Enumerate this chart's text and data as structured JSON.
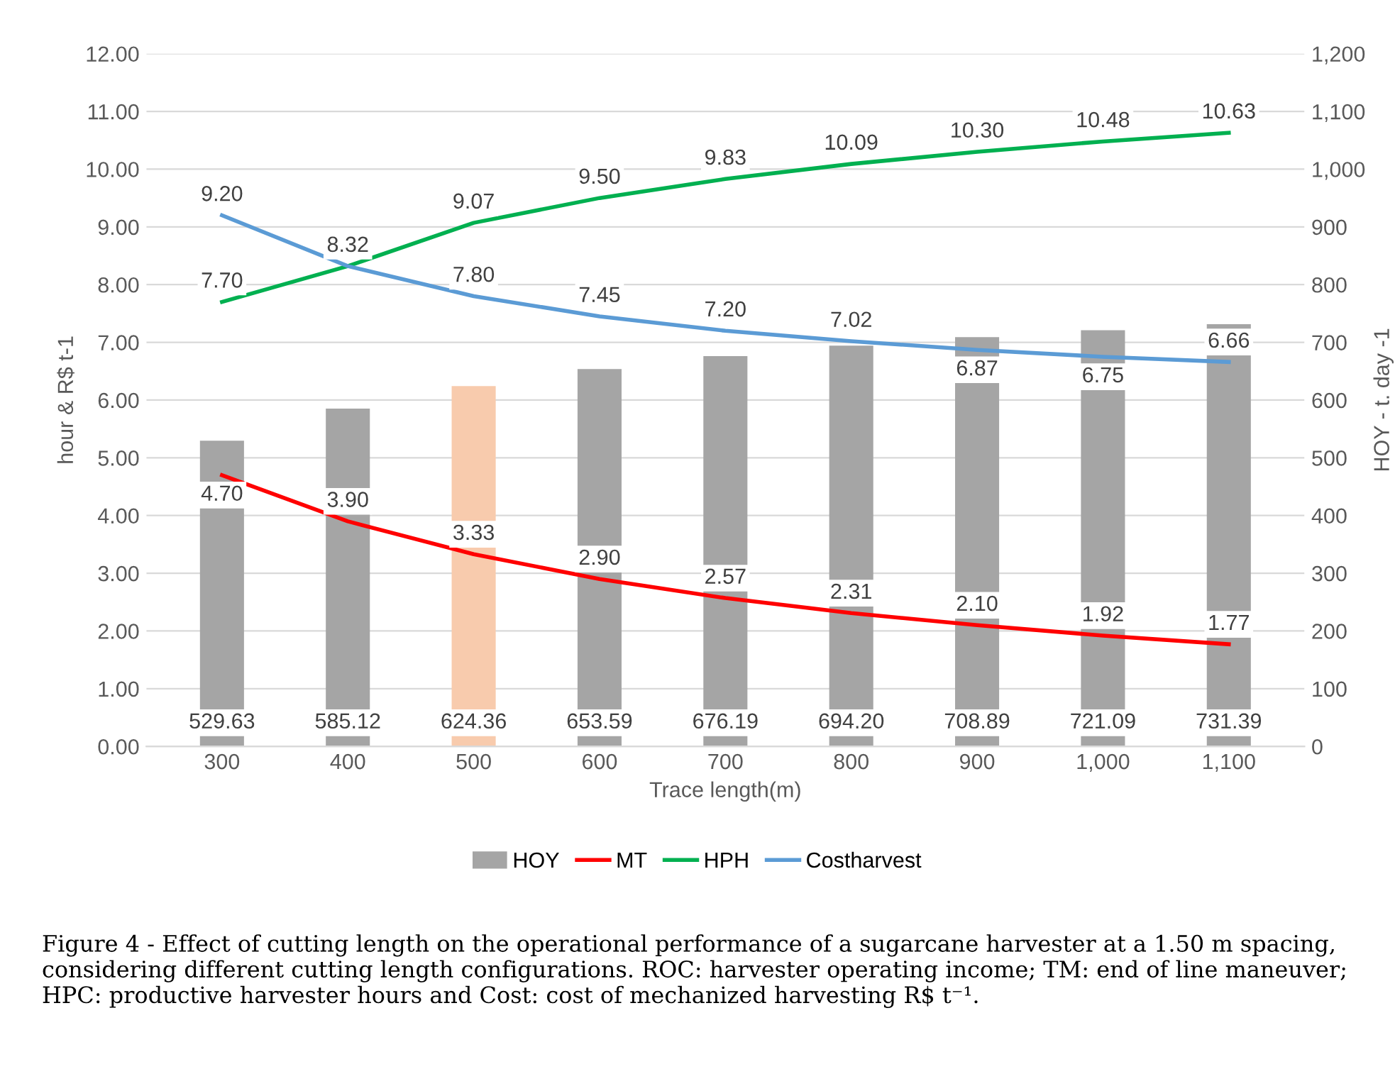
{
  "chart_data": {
    "type": "bar",
    "xlabel": "Trace length(m)",
    "ylabel": "hour & R$ t-1",
    "y2label": "HOY - t. day -1",
    "categories": [
      "300",
      "400",
      "500",
      "600",
      "700",
      "800",
      "900",
      "1,000",
      "1,100"
    ],
    "series": [
      {
        "name": "HOY",
        "axis": "y2",
        "color": "#a5a5a5",
        "colors": [
          "#a5a5a5",
          "#a5a5a5",
          "#f8cbad",
          "#a5a5a5",
          "#a5a5a5",
          "#a5a5a5",
          "#a5a5a5",
          "#a5a5a5",
          "#a5a5a5"
        ],
        "values": [
          529.63,
          585.12,
          624.36,
          653.59,
          676.19,
          694.2,
          708.89,
          721.09,
          731.39
        ],
        "value_labels": [
          "529.63",
          "585.12",
          "624.36",
          "653.59",
          "676.19",
          "694.20",
          "708.89",
          "721.09",
          "731.39"
        ]
      },
      {
        "name": "MT",
        "type": "line",
        "color": "#ff0000",
        "values": [
          4.7,
          3.9,
          3.33,
          2.9,
          2.57,
          2.31,
          2.1,
          1.92,
          1.77
        ],
        "value_labels": [
          "4.70",
          "3.90",
          "3.33",
          "2.90",
          "2.57",
          "2.31",
          "2.10",
          "1.92",
          "1.77"
        ]
      },
      {
        "name": "HPH",
        "type": "line",
        "color": "#00b050",
        "values": [
          7.7,
          8.32,
          9.07,
          9.5,
          9.83,
          10.09,
          10.3,
          10.48,
          10.63
        ],
        "value_labels": [
          "7.70",
          null,
          "9.07",
          "9.50",
          "9.83",
          "10.09",
          "10.30",
          "10.48",
          "10.63"
        ]
      },
      {
        "name": "Costharvest",
        "type": "line",
        "color": "#5b9bd5",
        "values": [
          9.2,
          8.32,
          7.8,
          7.45,
          7.2,
          7.02,
          6.87,
          6.75,
          6.66
        ],
        "value_labels": [
          "9.20",
          "8.32",
          "7.80",
          "7.45",
          "7.20",
          "7.02",
          "6.87",
          "6.75",
          "6.66"
        ]
      }
    ],
    "ylim": [
      0,
      12
    ],
    "yticks": [
      {
        "value": 0,
        "label": "0.00"
      },
      {
        "value": 1,
        "label": "1.00"
      },
      {
        "value": 2,
        "label": "2.00"
      },
      {
        "value": 3,
        "label": "3.00"
      },
      {
        "value": 4,
        "label": "4.00"
      },
      {
        "value": 5,
        "label": "5.00"
      },
      {
        "value": 6,
        "label": "6.00"
      },
      {
        "value": 7,
        "label": "7.00"
      },
      {
        "value": 8,
        "label": "8.00"
      },
      {
        "value": 9,
        "label": "9.00"
      },
      {
        "value": 10,
        "label": "10.00"
      },
      {
        "value": 11,
        "label": "11.00"
      },
      {
        "value": 12,
        "label": "12.00"
      }
    ],
    "y2lim": [
      0,
      1200
    ],
    "y2ticks": [
      0,
      100,
      200,
      300,
      400,
      500,
      600,
      700,
      800,
      900,
      {
        "value": 1000,
        "label": "1,000"
      },
      {
        "value": 1100,
        "label": "1,100"
      },
      {
        "value": 1200,
        "label": "1,200"
      }
    ],
    "grid": "y",
    "legend": "bottom",
    "line_style": "solid",
    "annotations": [
      "Figure 4 - Effect of cutting length on the operational performance of a sugarcane harvester at a 1.50 m spacing, considering different cutting length configurations. ROC: harvester operating income; TM: end of line maneuver; HPC: productive harvester hours and Cost: cost of mechanized harvesting R$ t⁻¹."
    ]
  }
}
